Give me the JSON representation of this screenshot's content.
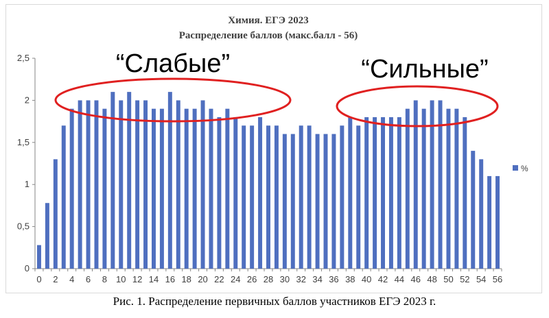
{
  "chart_data": {
    "type": "bar",
    "title": "Химия. ЕГЭ 2023",
    "subtitle": "Распределение баллов (макс.балл - 56)",
    "categories": [
      0,
      1,
      2,
      3,
      4,
      5,
      6,
      7,
      8,
      9,
      10,
      11,
      12,
      13,
      14,
      15,
      16,
      17,
      18,
      19,
      20,
      21,
      22,
      23,
      24,
      25,
      26,
      27,
      28,
      29,
      30,
      31,
      32,
      33,
      34,
      35,
      36,
      37,
      38,
      39,
      40,
      41,
      42,
      43,
      44,
      45,
      46,
      47,
      48,
      49,
      50,
      51,
      52,
      53,
      54,
      55,
      56
    ],
    "x_tick_labels": [
      "0",
      "2",
      "4",
      "6",
      "8",
      "10",
      "12",
      "14",
      "16",
      "18",
      "20",
      "22",
      "24",
      "26",
      "28",
      "30",
      "32",
      "34",
      "36",
      "38",
      "40",
      "42",
      "44",
      "46",
      "48",
      "50",
      "52",
      "54",
      "56"
    ],
    "y_tick_labels": [
      "0",
      "0,5",
      "1",
      "1,5",
      "2",
      "2,5"
    ],
    "ylim": [
      0,
      2.5
    ],
    "series": [
      {
        "name": "%",
        "color": "#4f6fbf",
        "values": [
          0.28,
          0.78,
          1.3,
          1.7,
          1.9,
          2.0,
          2.0,
          2.0,
          1.9,
          2.1,
          2.0,
          2.1,
          2.0,
          2.0,
          1.9,
          1.9,
          2.1,
          2.0,
          1.9,
          1.9,
          2.0,
          1.9,
          1.8,
          1.9,
          1.8,
          1.7,
          1.7,
          1.8,
          1.7,
          1.7,
          1.6,
          1.6,
          1.7,
          1.7,
          1.6,
          1.6,
          1.6,
          1.7,
          1.8,
          1.7,
          1.8,
          1.8,
          1.8,
          1.8,
          1.8,
          1.9,
          2.0,
          1.9,
          2.0,
          2.0,
          1.9,
          1.9,
          1.8,
          1.4,
          1.3,
          1.1,
          1.1
        ]
      }
    ],
    "grid": false,
    "legend_position": "right",
    "annotations": [
      {
        "text": "“Слабые”",
        "color": "#e02020"
      },
      {
        "text": "“Сильные”",
        "color": "#e02020"
      }
    ]
  },
  "caption": "Рис. 1. Распределение первичных баллов участников ЕГЭ 2023 г."
}
